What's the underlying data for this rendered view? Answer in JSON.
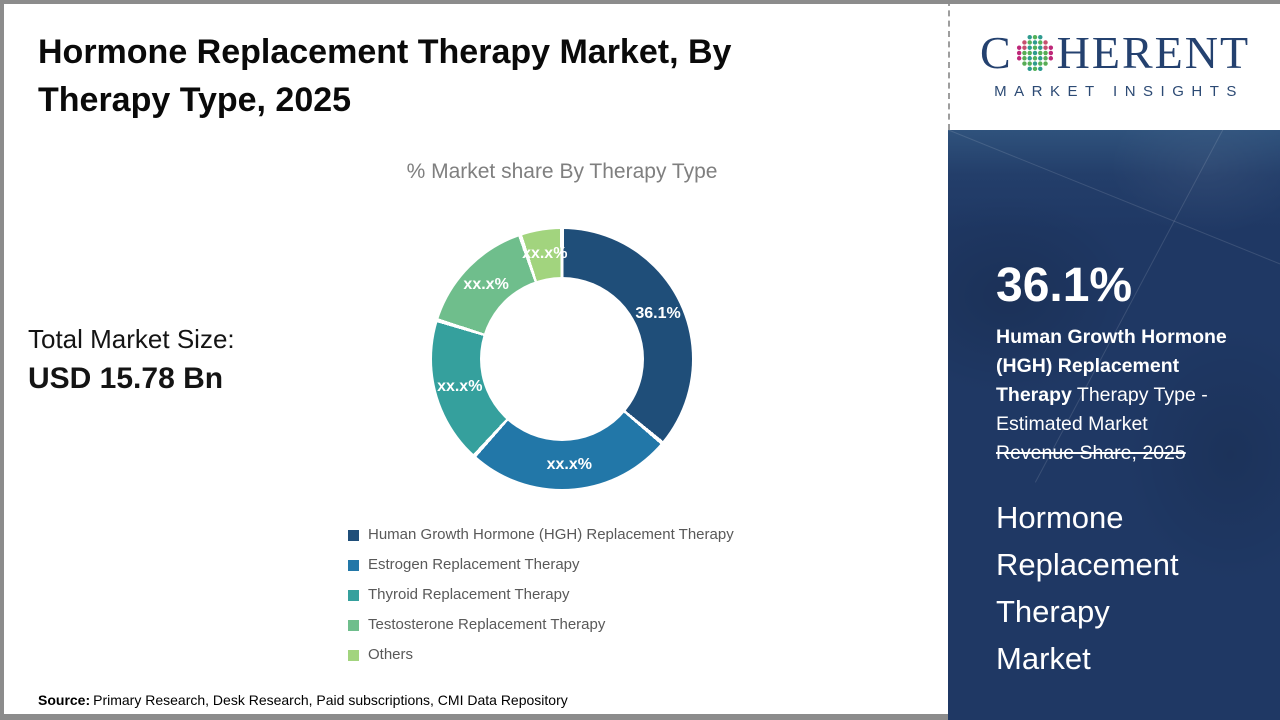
{
  "page": {
    "title": "Hormone Replacement Therapy Market, By Therapy Type, 2025",
    "source_label": "Source:",
    "source_text": "Primary Research, Desk Research, Paid subscriptions, CMI Data Repository"
  },
  "total_market": {
    "label": "Total Market Size:",
    "value": "USD 15.78 Bn"
  },
  "chart_data": {
    "type": "pie",
    "donut": true,
    "title": "% Market share By Therapy Type",
    "unit": "%",
    "legend_position": "bottom",
    "series": [
      {
        "name": "Human Growth Hormone (HGH) Replacement Therapy",
        "display_label": "36.1%",
        "approx_percent": 36.1,
        "color": "#1F4E79"
      },
      {
        "name": "Estrogen Replacement Therapy",
        "display_label": "xx.x%",
        "approx_percent": 25.6,
        "color": "#2277A8"
      },
      {
        "name": "Thyroid Replacement Therapy",
        "display_label": "xx.x%",
        "approx_percent": 18.1,
        "color": "#35A09D"
      },
      {
        "name": "Testosterone Replacement Therapy",
        "display_label": "xx.x%",
        "approx_percent": 15.0,
        "color": "#6FBE8C"
      },
      {
        "name": "Others",
        "display_label": "xx.x%",
        "approx_percent": 5.2,
        "color": "#A2D47E"
      }
    ]
  },
  "logo": {
    "brand_first": "C",
    "brand_rest": "HERENT",
    "tagline": "MARKET INSIGHTS",
    "brand_color": "#24416F"
  },
  "side_panel": {
    "bg_color": "#1F3864",
    "stat_value": "36.1%",
    "stat_bold": " Human Growth Hormone (HGH) Replacement Therapy",
    "stat_regular": " Therapy Type - Estimated Market ",
    "stat_strike": "Revenue Share, 2025",
    "market_name": "Hormone Replacement Therapy Market"
  }
}
